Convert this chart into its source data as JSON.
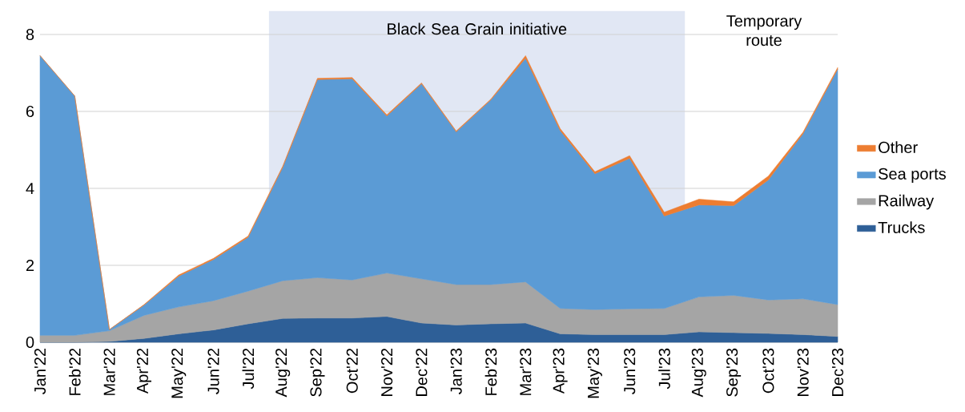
{
  "chart_data": {
    "type": "area",
    "stacked": true,
    "categories": [
      "Jan'22",
      "Feb'22",
      "Mar'22",
      "Apr'22",
      "May'22",
      "Jun'22",
      "Jul'22",
      "Aug'22",
      "Sep'22",
      "Oct'22",
      "Nov'22",
      "Dec'22",
      "Jan'23",
      "Feb'23",
      "Mar'23",
      "Apr'23",
      "May'23",
      "Jun'23",
      "Jul'23",
      "Aug'23",
      "Sep'23",
      "Oct'23",
      "Nov'23",
      "Dec'23"
    ],
    "series": [
      {
        "name": "Trucks",
        "color": "#2e5f97",
        "values": [
          0,
          0,
          0.02,
          0.1,
          0.22,
          0.32,
          0.48,
          0.62,
          0.63,
          0.63,
          0.67,
          0.5,
          0.45,
          0.48,
          0.5,
          0.22,
          0.2,
          0.2,
          0.2,
          0.27,
          0.25,
          0.23,
          0.2,
          0.15
        ]
      },
      {
        "name": "Railway",
        "color": "#a5a5a5",
        "values": [
          0.18,
          0.18,
          0.28,
          0.6,
          0.7,
          0.76,
          0.85,
          0.98,
          1.05,
          0.99,
          1.13,
          1.15,
          1.05,
          1.02,
          1.07,
          0.66,
          0.65,
          0.67,
          0.68,
          0.91,
          0.97,
          0.87,
          0.93,
          0.83
        ]
      },
      {
        "name": "Sea ports",
        "color": "#5b9bd5",
        "values": [
          7.27,
          6.22,
          0.03,
          0.27,
          0.8,
          1.07,
          1.4,
          2.95,
          5.15,
          5.23,
          4.08,
          5.07,
          3.97,
          4.8,
          5.81,
          4.62,
          3.53,
          3.91,
          2.4,
          2.39,
          2.33,
          3.12,
          4.29,
          6.12
        ]
      },
      {
        "name": "Other",
        "color": "#ed7d31",
        "values": [
          0,
          0,
          0,
          0.01,
          0.03,
          0.03,
          0.03,
          0.03,
          0.03,
          0.03,
          0.03,
          0.02,
          0.02,
          0.02,
          0.07,
          0.05,
          0.05,
          0.07,
          0.1,
          0.15,
          0.1,
          0.1,
          0.04,
          0.04
        ]
      }
    ],
    "ylim": [
      0,
      8
    ],
    "yticks": [
      0,
      2,
      4,
      6,
      8
    ],
    "grid": "y",
    "legend": "right",
    "annotations": [
      "Black Sea Grain initiative",
      "Temporary route"
    ]
  }
}
